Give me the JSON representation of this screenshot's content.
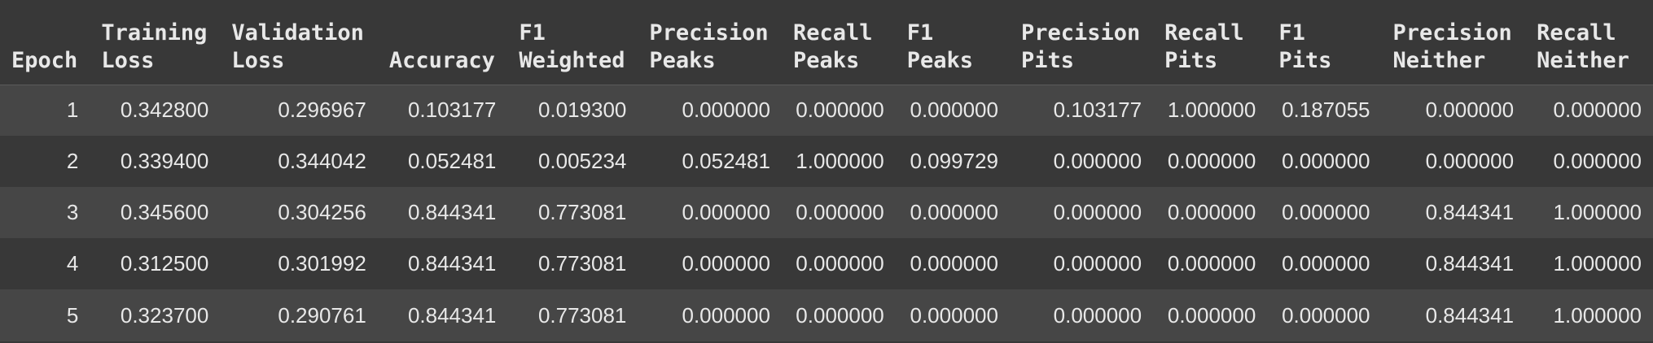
{
  "table": {
    "headers": [
      [
        "Epoch"
      ],
      [
        "Training",
        "Loss"
      ],
      [
        "Validation",
        "Loss"
      ],
      [
        "Accuracy"
      ],
      [
        "F1",
        "Weighted"
      ],
      [
        "Precision",
        "Peaks"
      ],
      [
        "Recall",
        "Peaks"
      ],
      [
        "F1",
        "Peaks"
      ],
      [
        "Precision",
        "Pits"
      ],
      [
        "Recall",
        "Pits"
      ],
      [
        "F1",
        "Pits"
      ],
      [
        "Precision",
        "Neither"
      ],
      [
        "Recall",
        "Neither"
      ]
    ],
    "rows": [
      [
        "1",
        "0.342800",
        "0.296967",
        "0.103177",
        "0.019300",
        "0.000000",
        "0.000000",
        "0.000000",
        "0.103177",
        "1.000000",
        "0.187055",
        "0.000000",
        "0.000000"
      ],
      [
        "2",
        "0.339400",
        "0.344042",
        "0.052481",
        "0.005234",
        "0.052481",
        "1.000000",
        "0.099729",
        "0.000000",
        "0.000000",
        "0.000000",
        "0.000000",
        "0.000000"
      ],
      [
        "3",
        "0.345600",
        "0.304256",
        "0.844341",
        "0.773081",
        "0.000000",
        "0.000000",
        "0.000000",
        "0.000000",
        "0.000000",
        "0.000000",
        "0.844341",
        "1.000000"
      ],
      [
        "4",
        "0.312500",
        "0.301992",
        "0.844341",
        "0.773081",
        "0.000000",
        "0.000000",
        "0.000000",
        "0.000000",
        "0.000000",
        "0.000000",
        "0.844341",
        "1.000000"
      ],
      [
        "5",
        "0.323700",
        "0.290761",
        "0.844341",
        "0.773081",
        "0.000000",
        "0.000000",
        "0.000000",
        "0.000000",
        "0.000000",
        "0.000000",
        "0.844341",
        "1.000000"
      ]
    ]
  }
}
